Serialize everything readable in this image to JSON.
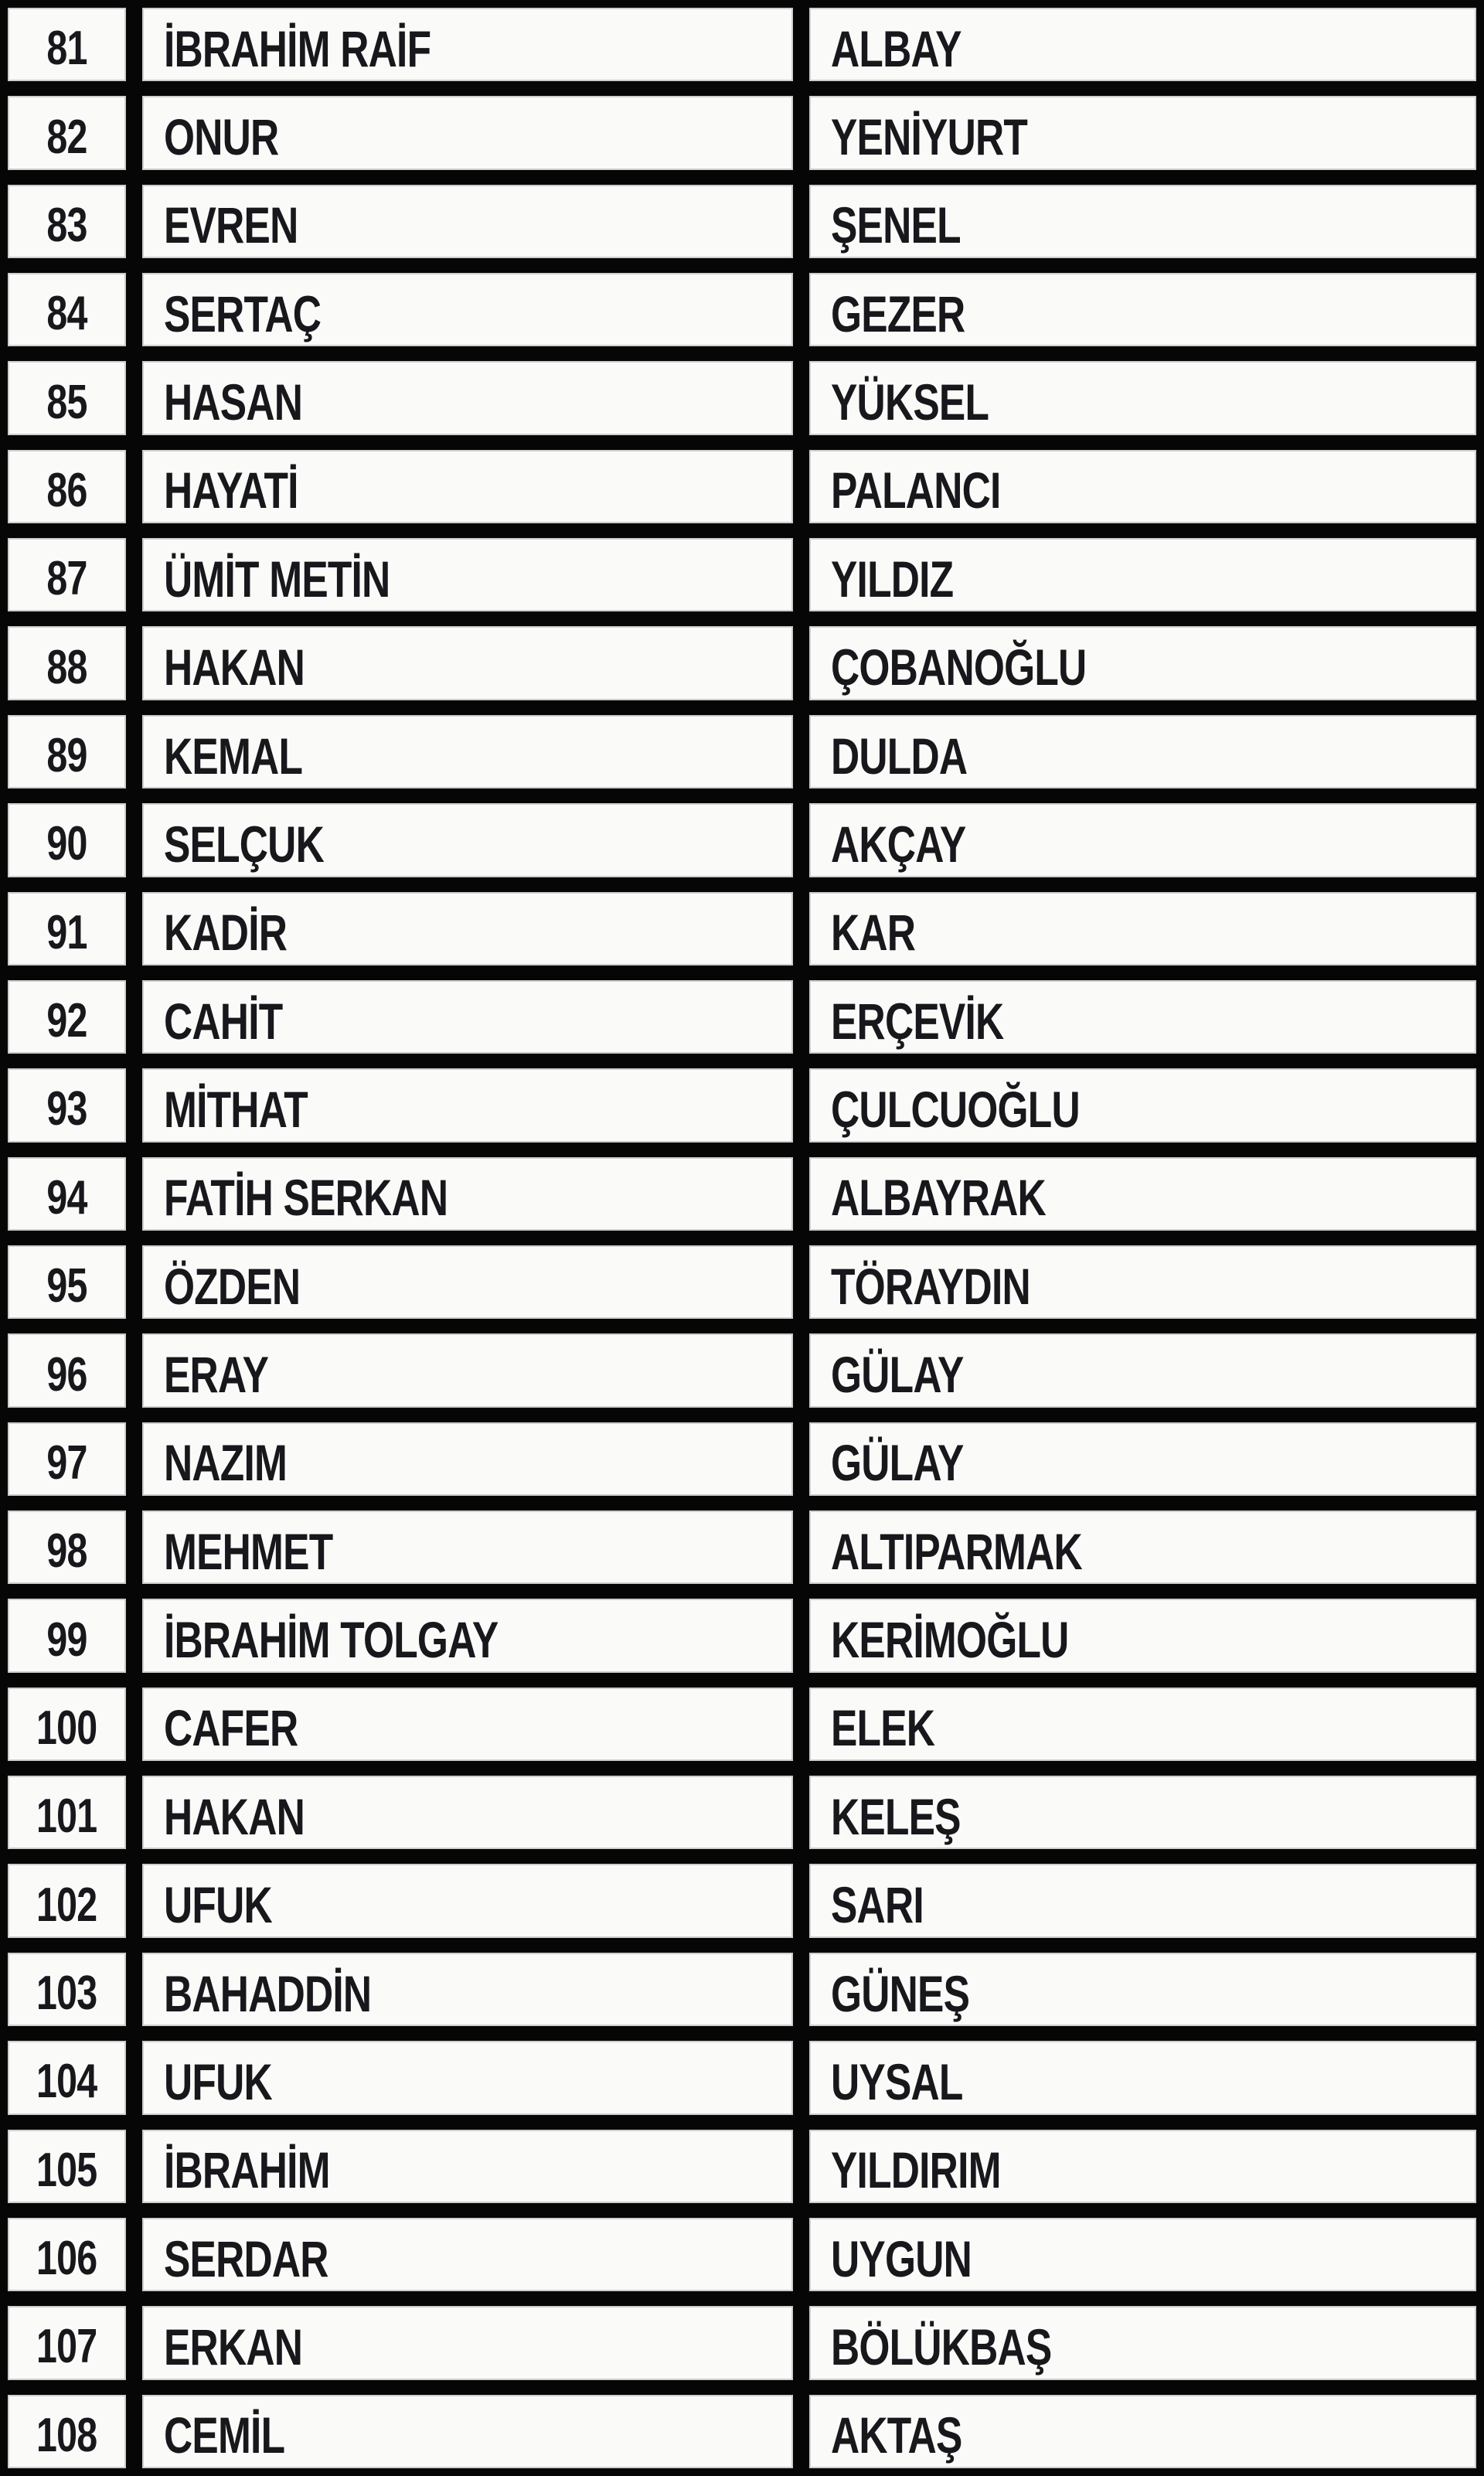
{
  "colors": {
    "page_background": "#060606",
    "cell_background": "#fafaf8",
    "text": "#17171c",
    "grid_line": "#060606"
  },
  "table": {
    "rows": [
      {
        "no": "81",
        "first": "İBRAHİM RAİF",
        "last": "ALBAY"
      },
      {
        "no": "82",
        "first": "ONUR",
        "last": "YENİYURT"
      },
      {
        "no": "83",
        "first": "EVREN",
        "last": "ŞENEL"
      },
      {
        "no": "84",
        "first": "SERTAÇ",
        "last": "GEZER"
      },
      {
        "no": "85",
        "first": "HASAN",
        "last": "YÜKSEL"
      },
      {
        "no": "86",
        "first": "HAYATİ",
        "last": "PALANCI"
      },
      {
        "no": "87",
        "first": "ÜMİT METİN",
        "last": "YILDIZ"
      },
      {
        "no": "88",
        "first": "HAKAN",
        "last": "ÇOBANOĞLU"
      },
      {
        "no": "89",
        "first": "KEMAL",
        "last": "DULDA"
      },
      {
        "no": "90",
        "first": "SELÇUK",
        "last": "AKÇAY"
      },
      {
        "no": "91",
        "first": "KADİR",
        "last": "KAR"
      },
      {
        "no": "92",
        "first": "CAHİT",
        "last": "ERÇEVİK"
      },
      {
        "no": "93",
        "first": "MİTHAT",
        "last": "ÇULCUOĞLU"
      },
      {
        "no": "94",
        "first": "FATİH SERKAN",
        "last": "ALBAYRAK"
      },
      {
        "no": "95",
        "first": "ÖZDEN",
        "last": "TÖRAYDIN"
      },
      {
        "no": "96",
        "first": "ERAY",
        "last": "GÜLAY"
      },
      {
        "no": "97",
        "first": "NAZIM",
        "last": "GÜLAY"
      },
      {
        "no": "98",
        "first": "MEHMET",
        "last": "ALTIPARMAK"
      },
      {
        "no": "99",
        "first": "İBRAHİM TOLGAY",
        "last": "KERİMOĞLU"
      },
      {
        "no": "100",
        "first": "CAFER",
        "last": "ELEK"
      },
      {
        "no": "101",
        "first": "HAKAN",
        "last": "KELEŞ"
      },
      {
        "no": "102",
        "first": "UFUK",
        "last": "SARI"
      },
      {
        "no": "103",
        "first": "BAHADDİN",
        "last": "GÜNEŞ"
      },
      {
        "no": "104",
        "first": "UFUK",
        "last": "UYSAL"
      },
      {
        "no": "105",
        "first": "İBRAHİM",
        "last": "YILDIRIM"
      },
      {
        "no": "106",
        "first": "SERDAR",
        "last": "UYGUN"
      },
      {
        "no": "107",
        "first": "ERKAN",
        "last": "BÖLÜKBAŞ"
      },
      {
        "no": "108",
        "first": "CEMİL",
        "last": "AKTAŞ"
      }
    ]
  }
}
